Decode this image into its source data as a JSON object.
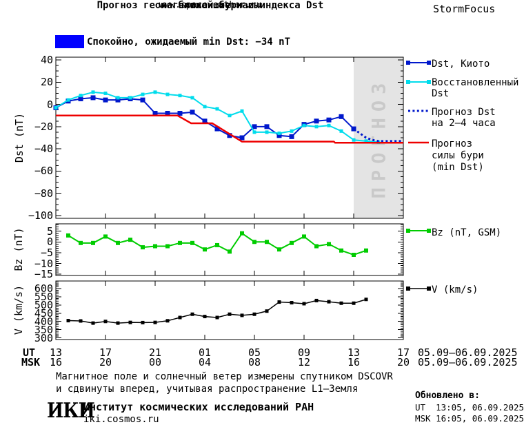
{
  "header": {
    "title_line1": "Прогноз геомагнитной бури и индекса Dst",
    "title_line2": "на ближайшие часы",
    "website": "www.spaceweather.ru",
    "brand": "StormFocus"
  },
  "status_banner": {
    "swatch_color": "#0000ff",
    "text": "Спокойно, ожидаемый min Dst: −34 nT"
  },
  "chart_data": [
    {
      "type": "line",
      "ylabel": "Dst (nT)",
      "ylim": [
        -102.5,
        42.5
      ],
      "yticks": [
        40,
        20,
        0,
        -20,
        -40,
        -60,
        -80,
        -100
      ],
      "ytick_minor_step": 5,
      "xlim": [
        0,
        28
      ],
      "xticks_hours": [
        0,
        4,
        8,
        12,
        16,
        20,
        24,
        28
      ],
      "forecast_band": {
        "start_hour": 24,
        "end_hour": 28,
        "label": "ПРОГНОЗ",
        "fill": "#e4e4e4",
        "text_color": "#c9c9c9"
      },
      "series": [
        {
          "name": "Dst, Киото",
          "color": "#0018cc",
          "marker": 7,
          "line_width": 2,
          "x": [
            0,
            1,
            2,
            3,
            4,
            5,
            6,
            7,
            8,
            9,
            10,
            11,
            12,
            13,
            14,
            15,
            16,
            17,
            18,
            19,
            20,
            21,
            22,
            23,
            24
          ],
          "values": [
            -3,
            3,
            5,
            6,
            4,
            4,
            5,
            4,
            -8,
            -8,
            -8,
            -7,
            -15,
            -22,
            -28,
            -30,
            -20,
            -20,
            -28,
            -29,
            -18,
            -15,
            -14,
            -11,
            -22
          ]
        },
        {
          "name": "Восстановленный Dst",
          "color": "#00dcec",
          "marker": 5,
          "line_width": 2,
          "x": [
            0,
            1,
            2,
            3,
            4,
            5,
            6,
            7,
            8,
            9,
            10,
            11,
            12,
            13,
            14,
            15,
            16,
            17,
            18,
            19,
            20,
            21,
            22,
            23,
            24,
            25,
            26
          ],
          "values": [
            -3,
            4,
            8,
            11,
            10,
            6,
            6,
            9,
            11,
            9,
            8,
            6,
            -2,
            -4,
            -10,
            -6,
            -25,
            -25,
            -26,
            -24,
            -19,
            -20,
            -19,
            -24,
            -32,
            -33,
            -34
          ]
        },
        {
          "name": "Прогноз Dst на 2–4 часа",
          "color": "#0018cc",
          "style": "dotted",
          "line_width": 3,
          "x": [
            24,
            24.5,
            25,
            25.5,
            26,
            26.5,
            27,
            27.5,
            28
          ],
          "values": [
            -22,
            -26,
            -30,
            -32,
            -33,
            -33,
            -33,
            -33,
            -33
          ]
        },
        {
          "name": "Прогноз силы бури (min Dst)",
          "color": "#ee0000",
          "line_width": 2.5,
          "x": [
            0,
            9.8,
            10.9,
            12.6,
            15,
            22.4,
            22.5,
            28
          ],
          "values": [
            -10,
            -10,
            -17,
            -17,
            -33.5,
            -33.5,
            -34.5,
            -34.5
          ]
        }
      ],
      "legend": [
        {
          "lines": [
            "Dst, Киото"
          ]
        },
        {
          "lines": [
            "Восстановленный",
            "Dst"
          ]
        },
        {
          "lines": [
            "Прогноз Dst",
            "на 2–4 часа"
          ]
        },
        {
          "lines": [
            "Прогноз",
            "силы бури",
            "(min Dst)"
          ]
        }
      ]
    },
    {
      "type": "line",
      "ylabel": "Bz (nT)",
      "ylim": [
        -15.6,
        8.4
      ],
      "yticks": [
        5,
        0,
        -5,
        -10,
        -15
      ],
      "ytick_minor_step": 1,
      "xlim": [
        0,
        28
      ],
      "legend_label": "Bz (nT, GSM)",
      "series": [
        {
          "name": "Bz (nT, GSM)",
          "color": "#00cc00",
          "marker": 6,
          "line_width": 2,
          "x": [
            1,
            2,
            3,
            4,
            5,
            6,
            7,
            8,
            9,
            10,
            11,
            12,
            13,
            14,
            15,
            16,
            17,
            18,
            19,
            20,
            21,
            22,
            23,
            24,
            25
          ],
          "values": [
            3,
            -0.5,
            -0.5,
            2.5,
            -0.5,
            1,
            -2.5,
            -2,
            -2,
            -0.5,
            -0.5,
            -3.5,
            -1.5,
            -4.5,
            4,
            0,
            0,
            -3.5,
            -0.5,
            2.5,
            -2,
            -1,
            -4,
            -6,
            -4
          ]
        }
      ]
    },
    {
      "type": "line",
      "ylabel": "V (km/s)",
      "ylim": [
        290,
        646
      ],
      "yticks": [
        600,
        550,
        500,
        450,
        400,
        350,
        300
      ],
      "ytick_minor_step": 10,
      "xlim": [
        0,
        28
      ],
      "legend_label": "V (km/s)",
      "series": [
        {
          "name": "V (km/s)",
          "color": "#000000",
          "marker": 5,
          "line_width": 1.5,
          "x": [
            1,
            2,
            3,
            4,
            5,
            6,
            7,
            8,
            9,
            10,
            11,
            12,
            13,
            14,
            15,
            16,
            17,
            18,
            19,
            20,
            21,
            22,
            23,
            24,
            25
          ],
          "values": [
            405,
            403,
            390,
            400,
            390,
            394,
            393,
            394,
            404,
            424,
            444,
            430,
            424,
            444,
            437,
            444,
            463,
            518,
            514,
            508,
            527,
            520,
            511,
            511,
            534
          ]
        }
      ]
    }
  ],
  "xaxis": {
    "ut_label": "UT",
    "msk_label": "MSK",
    "ut_ticks": [
      "13",
      "17",
      "21",
      "01",
      "05",
      "09",
      "13",
      "17"
    ],
    "msk_ticks": [
      "16",
      "20",
      "00",
      "04",
      "08",
      "12",
      "16",
      "20"
    ],
    "ut_date_range": "05.09–06.09.2025",
    "msk_date_range": "05.09–06.09.2025"
  },
  "footer": {
    "note_line1": "Магнитное поле и солнечный ветер измерены спутником DSCOVR",
    "note_line2": "и сдвинуты вперед, учитывая распространение L1–Земля",
    "logo": "ИКИ",
    "institute": "Институт космических исследований РАН",
    "institute_site": "iki.cosmos.ru",
    "updated_label": "Обновлено в:",
    "updated_ut": "UT  13:05, 06.09.2025",
    "updated_msk": "MSK 16:05, 06.09.2025"
  }
}
